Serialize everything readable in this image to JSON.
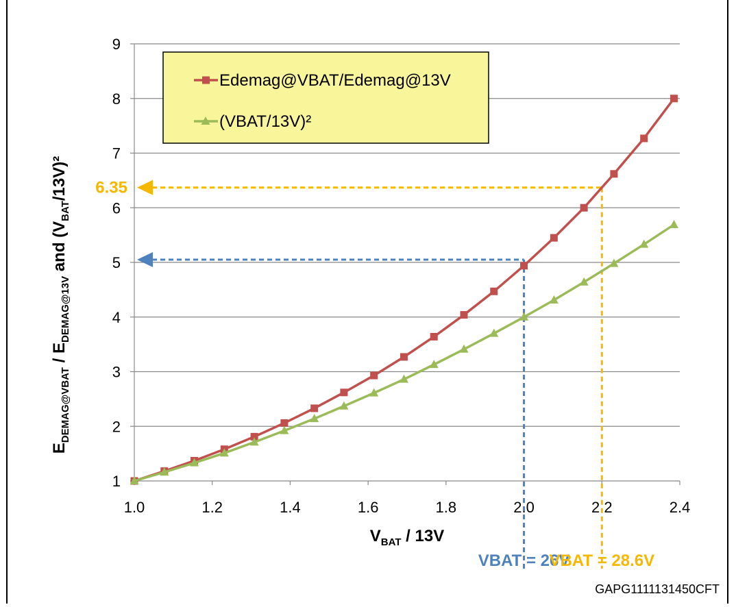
{
  "chart_data": {
    "type": "line",
    "title": "",
    "xlabel": {
      "main": "V",
      "sub": "BAT",
      "rest": " / 13V"
    },
    "ylabel": {
      "parts": [
        {
          "t": "E",
          "sub": false
        },
        {
          "t": "DEMAG@VBAT",
          "sub": true
        },
        {
          "t": " / E",
          "sub": false
        },
        {
          "t": "DEMAG@13V",
          "sub": true
        },
        {
          "t": "   and  (V",
          "sub": false
        },
        {
          "t": "BAT",
          "sub": true
        },
        {
          "t": "/13V)²",
          "sub": false
        }
      ]
    },
    "xlim": [
      1.0,
      2.4
    ],
    "ylim": [
      1,
      9
    ],
    "xticks": [
      "1.0",
      "1.2",
      "1.4",
      "1.6",
      "1.8",
      "2.0",
      "2.2",
      "2.4"
    ],
    "yticks": [
      "1",
      "2",
      "3",
      "4",
      "5",
      "6",
      "7",
      "8",
      "9"
    ],
    "grid": "horizontal",
    "legend_position": "top-left",
    "series": [
      {
        "name": "Edemag@VBAT/Edemag@13V",
        "color": "#c0504d",
        "marker": "square",
        "x": [
          1.0,
          1.077,
          1.154,
          1.231,
          1.308,
          1.385,
          1.462,
          1.538,
          1.615,
          1.692,
          1.769,
          1.846,
          1.923,
          2.0,
          2.077,
          2.154,
          2.231,
          2.308,
          2.385
        ],
        "y": [
          1.0,
          1.18,
          1.37,
          1.58,
          1.81,
          2.06,
          2.33,
          2.62,
          2.93,
          3.27,
          3.64,
          4.04,
          4.47,
          4.94,
          5.45,
          6.0,
          6.62,
          7.27,
          8.0
        ]
      },
      {
        "name": "(VBAT/13V)²",
        "color": "#9bbb59",
        "marker": "triangle",
        "x": [
          1.0,
          1.077,
          1.154,
          1.231,
          1.308,
          1.385,
          1.462,
          1.538,
          1.615,
          1.692,
          1.769,
          1.846,
          1.923,
          2.0,
          2.077,
          2.154,
          2.231,
          2.308,
          2.385
        ],
        "y": [
          1.0,
          1.16,
          1.33,
          1.51,
          1.71,
          1.92,
          2.14,
          2.37,
          2.61,
          2.86,
          3.13,
          3.41,
          3.7,
          4.0,
          4.31,
          4.64,
          4.98,
          5.33,
          5.69
        ]
      }
    ],
    "annotations": [
      {
        "label": "",
        "x": 2.0,
        "y": 5.05,
        "color": "#4f81bd",
        "bottom_text": "VBAT = 26V"
      },
      {
        "label": "6.35",
        "x": 2.2,
        "y": 6.37,
        "color": "#f5b800",
        "bottom_text": "VBAT = 28.6V"
      }
    ],
    "figure_code": "GAPG1111131450CFT"
  }
}
